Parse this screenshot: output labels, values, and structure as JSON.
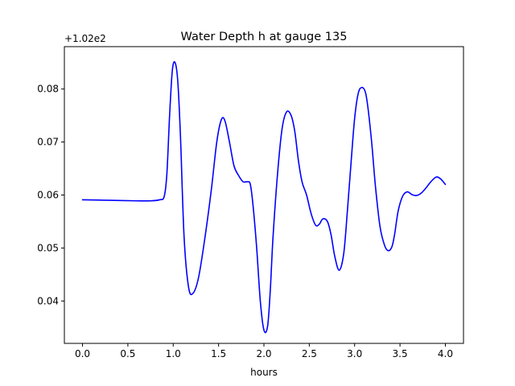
{
  "chart_data": {
    "type": "line",
    "title": "Water Depth h at gauge 135",
    "xlabel": "hours",
    "ylabel": "",
    "offset_text": "+1.02e2",
    "offset_value": 102,
    "xlim": [
      -0.2,
      4.2
    ],
    "ylim": [
      0.032,
      0.088
    ],
    "x_ticks": [
      0.0,
      0.5,
      1.0,
      1.5,
      2.0,
      2.5,
      3.0,
      3.5,
      4.0
    ],
    "x_tick_labels": [
      "0.0",
      "0.5",
      "1.0",
      "1.5",
      "2.0",
      "2.5",
      "3.0",
      "3.5",
      "4.0"
    ],
    "y_ticks": [
      0.04,
      0.05,
      0.06,
      0.07,
      0.08
    ],
    "y_tick_labels": [
      "0.04",
      "0.05",
      "0.06",
      "0.07",
      "0.08"
    ],
    "grid": false,
    "series": [
      {
        "color": "#0000ff",
        "x": [
          0.0,
          0.3,
          0.6,
          0.75,
          0.85,
          0.9,
          0.93,
          0.96,
          0.99,
          1.02,
          1.05,
          1.08,
          1.12,
          1.17,
          1.22,
          1.28,
          1.35,
          1.42,
          1.48,
          1.53,
          1.57,
          1.62,
          1.67,
          1.72,
          1.77,
          1.82,
          1.85,
          1.88,
          1.92,
          1.96,
          2.0,
          2.04,
          2.07,
          2.1,
          2.15,
          2.2,
          2.25,
          2.3,
          2.34,
          2.38,
          2.42,
          2.47,
          2.52,
          2.57,
          2.61,
          2.65,
          2.7,
          2.74,
          2.78,
          2.83,
          2.88,
          2.92,
          2.96,
          3.0,
          3.04,
          3.08,
          3.12,
          3.15,
          3.19,
          3.23,
          3.28,
          3.33,
          3.37,
          3.41,
          3.44,
          3.48,
          3.53,
          3.58,
          3.63,
          3.68,
          3.73,
          3.78,
          3.84,
          3.9,
          3.95,
          4.0
        ],
        "y": [
          0.0591,
          0.059,
          0.0589,
          0.0589,
          0.0591,
          0.0597,
          0.064,
          0.075,
          0.0835,
          0.085,
          0.0815,
          0.071,
          0.052,
          0.0425,
          0.0415,
          0.0445,
          0.052,
          0.061,
          0.07,
          0.0742,
          0.074,
          0.07,
          0.0655,
          0.0637,
          0.0625,
          0.0625,
          0.062,
          0.058,
          0.05,
          0.04,
          0.0345,
          0.0352,
          0.042,
          0.052,
          0.064,
          0.0725,
          0.0757,
          0.075,
          0.072,
          0.0665,
          0.0625,
          0.06,
          0.0565,
          0.0543,
          0.0545,
          0.0555,
          0.055,
          0.0525,
          0.0485,
          0.0458,
          0.049,
          0.057,
          0.066,
          0.0745,
          0.0792,
          0.0803,
          0.0793,
          0.076,
          0.0695,
          0.0615,
          0.054,
          0.0505,
          0.0495,
          0.0502,
          0.0525,
          0.057,
          0.0598,
          0.0606,
          0.0601,
          0.0599,
          0.0603,
          0.0612,
          0.0625,
          0.0634,
          0.063,
          0.062
        ]
      }
    ]
  }
}
